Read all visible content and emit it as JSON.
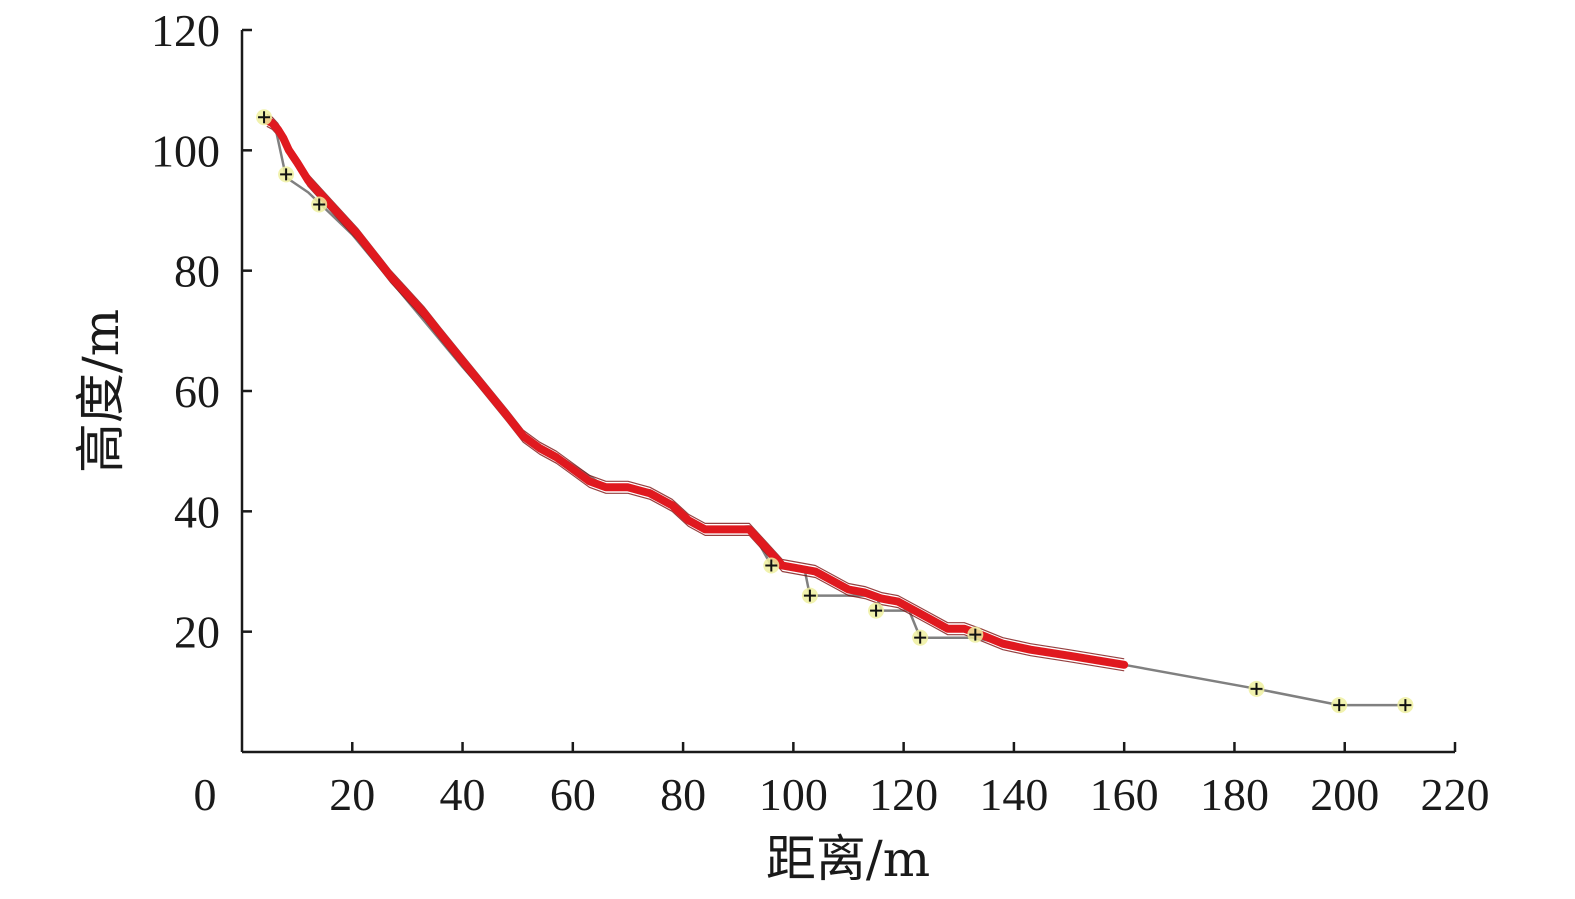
{
  "chart_data": {
    "type": "line",
    "xlabel": "距离/m",
    "ylabel": "高度/m",
    "xlim": [
      0,
      220
    ],
    "ylim": [
      0,
      120
    ],
    "x_ticks": [
      "0",
      "20",
      "40",
      "60",
      "80",
      "100",
      "120",
      "140",
      "160",
      "180",
      "200",
      "220"
    ],
    "y_ticks": [
      "20",
      "40",
      "60",
      "80",
      "100",
      "120"
    ],
    "grid": false,
    "colors": {
      "trajectory": "#e0191f",
      "trajectory_edge": "#7a1010",
      "profile": "#808080",
      "marker": "#111111",
      "marker_glow": "#eef0a0"
    },
    "series": [
      {
        "role": "trajectory-bundle",
        "x": [
          4.5,
          5.5,
          6.5,
          7.5,
          8.5,
          10,
          12,
          15,
          18,
          21,
          24,
          27,
          30,
          33,
          36,
          40,
          44,
          48,
          51,
          54,
          57,
          60,
          63,
          66,
          70,
          74,
          78,
          81,
          84,
          88,
          92,
          95,
          98,
          101,
          104,
          107,
          110,
          113,
          116,
          119,
          122,
          125,
          128,
          131,
          134,
          138,
          143,
          150,
          160
        ],
        "y": [
          105,
          104.5,
          103.5,
          102,
          100,
          98,
          95,
          92,
          89,
          86,
          82.5,
          79,
          76,
          73,
          69.5,
          65,
          60.5,
          56,
          52.5,
          50.5,
          49,
          47,
          45,
          44,
          44,
          43,
          41,
          38.5,
          37,
          37,
          37,
          34,
          31,
          30.5,
          30,
          28.5,
          27,
          26.5,
          25.5,
          25,
          23.5,
          22,
          20.5,
          20.5,
          19.5,
          18,
          17,
          16,
          14.5
        ]
      },
      {
        "role": "slope-profile",
        "x": [
          4,
          6,
          8,
          12,
          20,
          30,
          40,
          52,
          56,
          62,
          66,
          74,
          82,
          84,
          92,
          96,
          102,
          103,
          115,
          116,
          121,
          123,
          133,
          140,
          160,
          184,
          199,
          211
        ],
        "y": [
          105.5,
          104,
          95.5,
          93,
          86,
          75,
          64,
          51.5,
          50,
          46.5,
          44,
          43.5,
          38,
          37,
          37.5,
          31,
          30.5,
          26,
          26,
          23.5,
          23.5,
          19,
          19,
          17.5,
          14.5,
          10.5,
          7.8,
          7.8
        ]
      }
    ],
    "markers": [
      {
        "x": 4,
        "y": 105.5
      },
      {
        "x": 8,
        "y": 96
      },
      {
        "x": 14,
        "y": 91
      },
      {
        "x": 96,
        "y": 31
      },
      {
        "x": 103,
        "y": 26
      },
      {
        "x": 115,
        "y": 23.5
      },
      {
        "x": 123,
        "y": 19
      },
      {
        "x": 133,
        "y": 19.5
      },
      {
        "x": 184,
        "y": 10.5
      },
      {
        "x": 199,
        "y": 7.8
      },
      {
        "x": 211,
        "y": 7.8
      }
    ]
  }
}
